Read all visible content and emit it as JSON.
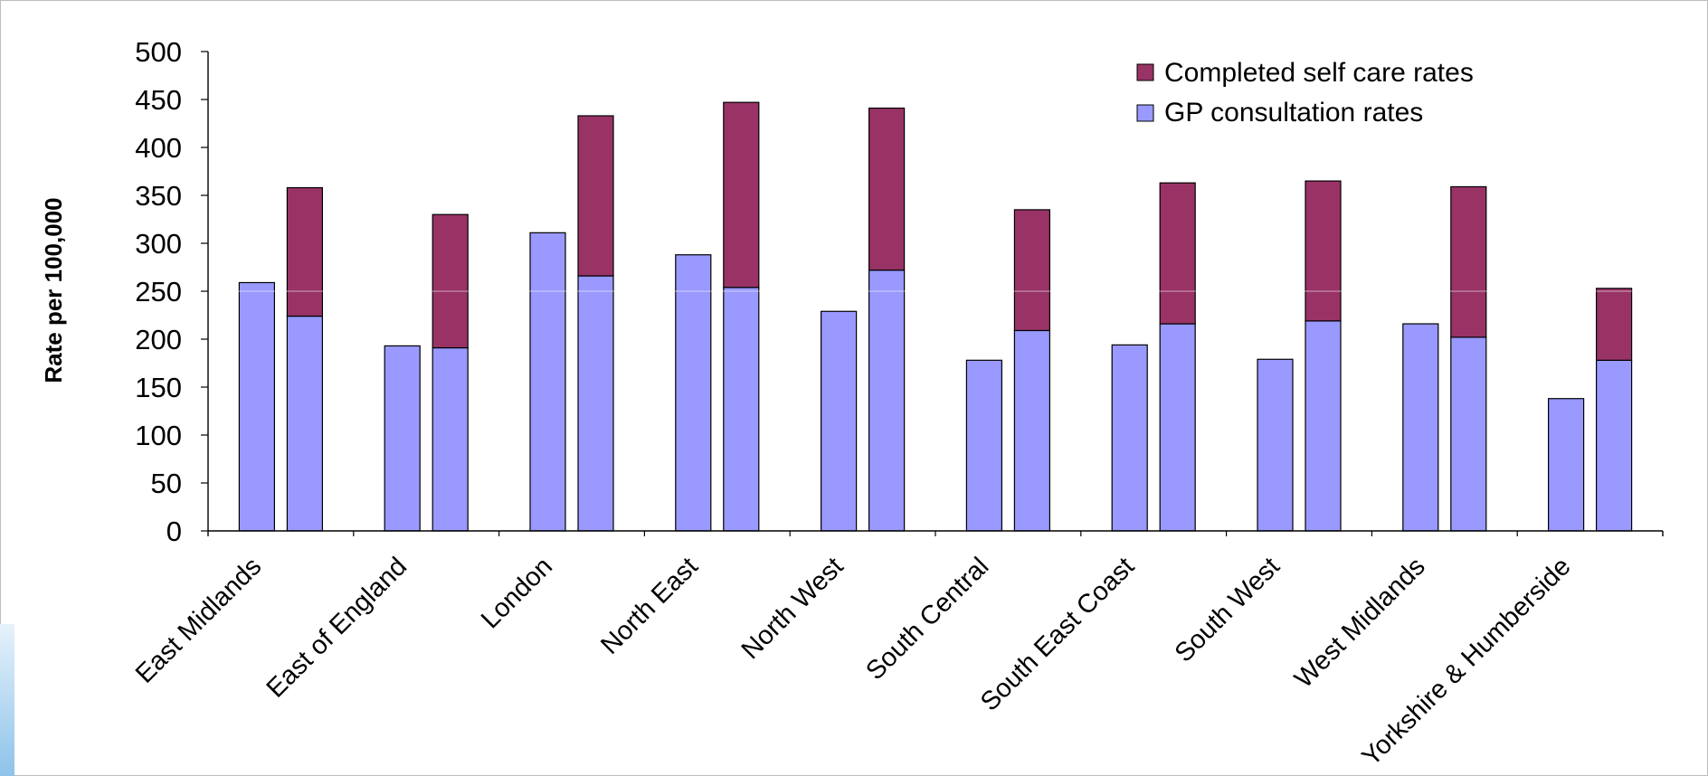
{
  "colors": {
    "gp": "#9999ff",
    "self_care": "#993366",
    "axis": "#000000",
    "gridline": "#ffffff"
  },
  "chart_data": {
    "type": "bar",
    "stacked_second_bar": true,
    "title": "",
    "xlabel": "",
    "ylabel": "Rate per 100,000",
    "ylim": [
      0,
      500
    ],
    "y_ticks": [
      0,
      50,
      100,
      150,
      200,
      250,
      300,
      350,
      400,
      450,
      500
    ],
    "grid": false,
    "legend_position": "top-right",
    "legend": [
      {
        "name": "Completed self care rates",
        "color": "#993366"
      },
      {
        "name": "GP consultation rates",
        "color": "#9999ff"
      }
    ],
    "categories": [
      "East Midlands",
      "East of England",
      "London",
      "North East",
      "North West",
      "South Central",
      "South East Coast",
      "South West",
      "West Midlands",
      "Yorkshire & Humberside"
    ],
    "series": [
      {
        "name": "GP consultation rates",
        "bar": "first",
        "values": [
          259,
          193,
          311,
          288,
          229,
          178,
          194,
          179,
          216,
          138
        ]
      },
      {
        "name": "GP consultation rates",
        "bar": "second",
        "values": [
          224,
          191,
          266,
          254,
          272,
          209,
          216,
          219,
          202,
          178
        ]
      },
      {
        "name": "Completed self care rates",
        "bar": "second",
        "values": [
          134,
          139,
          167,
          193,
          169,
          126,
          147,
          146,
          157,
          75
        ]
      }
    ]
  }
}
